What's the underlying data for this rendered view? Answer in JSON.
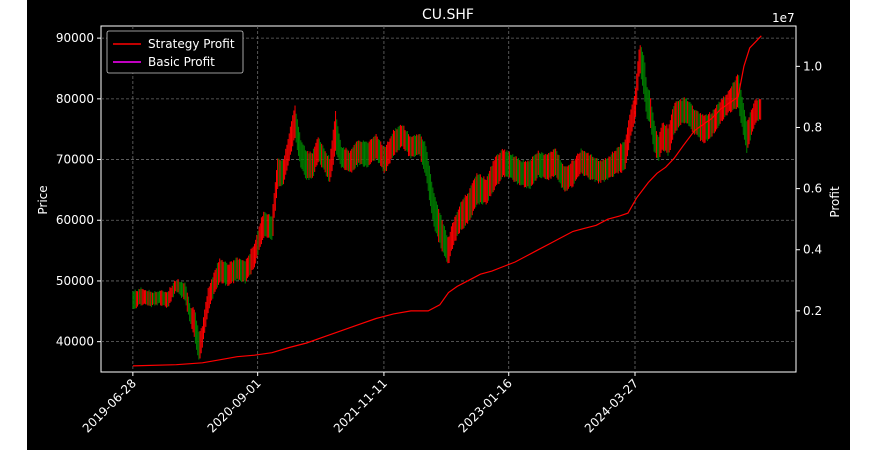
{
  "chart_data": {
    "type": "line",
    "title": "CU.SHF",
    "xlabel": "",
    "ylabel": "Price",
    "y2label": "Profit",
    "y2_offset_label": "1e7",
    "background": "#000000",
    "grid": true,
    "legend_position": "top-left",
    "x_tick_labels": [
      "2019-06-28",
      "2020-09-01",
      "2021-11-11",
      "2023-01-16",
      "2024-03-27"
    ],
    "x_tick_days": [
      0,
      431,
      867,
      1298,
      1734
    ],
    "x_range_days": [
      -110,
      2290
    ],
    "y_ticks": [
      40000,
      50000,
      60000,
      70000,
      80000,
      90000
    ],
    "y_tick_labels": [
      "40000",
      "50000",
      "60000",
      "70000",
      "80000",
      "90000"
    ],
    "ylim": [
      35000,
      92000
    ],
    "y2_ticks": [
      0.2,
      0.4,
      0.6,
      0.8,
      1.0
    ],
    "y2_tick_labels": [
      "0.2",
      "0.4",
      "0.6",
      "0.8",
      "1.0"
    ],
    "y2lim": [
      0.0,
      1.132
    ],
    "price_up_color": "#ff0000",
    "price_down_color": "#008000",
    "price_series": {
      "x": [
        0,
        30,
        60,
        90,
        120,
        150,
        180,
        200,
        210,
        220,
        230,
        240,
        260,
        280,
        300,
        330,
        360,
        390,
        420,
        450,
        480,
        500,
        520,
        545,
        560,
        580,
        600,
        620,
        640,
        660,
        680,
        700,
        720,
        750,
        780,
        810,
        840,
        870,
        900,
        930,
        960,
        990,
        1010,
        1040,
        1070,
        1090,
        1100,
        1110,
        1130,
        1160,
        1190,
        1220,
        1250,
        1280,
        1310,
        1340,
        1370,
        1400,
        1430,
        1460,
        1490,
        1520,
        1550,
        1580,
        1610,
        1640,
        1670,
        1700,
        1720,
        1735,
        1750,
        1765,
        1775,
        1785,
        1800,
        1815,
        1830,
        1850,
        1870,
        1890,
        1910,
        1940,
        1970,
        2000,
        2030,
        2060,
        2090,
        2120,
        2150,
        2170
      ],
      "close": [
        46500,
        47500,
        47000,
        47200,
        47000,
        49500,
        48500,
        44000,
        44500,
        41000,
        39000,
        41000,
        46500,
        49500,
        52000,
        51000,
        52000,
        51500,
        54000,
        59500,
        58500,
        68000,
        67500,
        73000,
        76500,
        71000,
        69000,
        68500,
        71500,
        70000,
        68000,
        73500,
        70500,
        69500,
        71000,
        70500,
        72000,
        69500,
        72500,
        74000,
        72000,
        72500,
        70000,
        62000,
        57000,
        54500,
        56500,
        58000,
        60500,
        62000,
        65000,
        64500,
        67000,
        69500,
        68500,
        67500,
        67000,
        69000,
        68500,
        69500,
        66500,
        67500,
        69500,
        68500,
        68000,
        68500,
        69500,
        70500,
        76000,
        79000,
        88500,
        84000,
        80000,
        79000,
        74000,
        71500,
        73500,
        72500,
        76500,
        77500,
        78000,
        76000,
        74500,
        75500,
        78000,
        79500,
        81500,
        73500,
        78000,
        78500
      ],
      "low": [
        45500,
        46500,
        46000,
        46500,
        46000,
        48500,
        47000,
        43000,
        41500,
        39000,
        37000,
        39500,
        45000,
        48000,
        50000,
        49500,
        50500,
        50000,
        52500,
        57500,
        57000,
        66000,
        66000,
        71000,
        74000,
        69000,
        67000,
        67000,
        70000,
        68500,
        66500,
        71500,
        69000,
        68000,
        69500,
        69000,
        70500,
        68000,
        71000,
        72500,
        70500,
        71000,
        68000,
        59000,
        55000,
        53000,
        55000,
        56500,
        58500,
        60000,
        63000,
        63000,
        65500,
        67500,
        67000,
        66000,
        65500,
        67500,
        67000,
        67500,
        65000,
        66000,
        68000,
        67000,
        66500,
        67000,
        68000,
        68500,
        74000,
        77000,
        85000,
        81000,
        77000,
        76500,
        71500,
        70000,
        72000,
        71000,
        74500,
        76000,
        76500,
        74500,
        73000,
        74000,
        76500,
        78000,
        79000,
        71500,
        76500,
        77000
      ],
      "high": [
        48000,
        48500,
        48000,
        48000,
        48000,
        50000,
        49500,
        45500,
        45500,
        43000,
        41000,
        42500,
        48500,
        51000,
        53500,
        52500,
        53500,
        53000,
        56000,
        61000,
        60500,
        70000,
        69500,
        75500,
        78500,
        73000,
        71000,
        71000,
        73500,
        71500,
        70000,
        77500,
        72000,
        71000,
        73000,
        72500,
        74000,
        71500,
        74500,
        75500,
        73500,
        74000,
        72500,
        64000,
        59500,
        56500,
        58500,
        60000,
        62500,
        64500,
        67500,
        66500,
        70000,
        71500,
        70500,
        69500,
        69500,
        71000,
        70500,
        71500,
        68500,
        69500,
        71500,
        70500,
        69500,
        70000,
        71500,
        73000,
        78000,
        81000,
        89000,
        87000,
        82000,
        81000,
        76000,
        73500,
        76000,
        75000,
        79000,
        79500,
        80000,
        78000,
        77000,
        77500,
        79500,
        81000,
        84000,
        76000,
        79500,
        80000
      ]
    },
    "series": [
      {
        "name": "Strategy Profit",
        "color": "#ff0000",
        "x": [
          0,
          150,
          240,
          300,
          360,
          420,
          480,
          540,
          600,
          660,
          720,
          780,
          840,
          900,
          960,
          1020,
          1060,
          1090,
          1120,
          1160,
          1200,
          1240,
          1280,
          1320,
          1360,
          1400,
          1440,
          1480,
          1520,
          1560,
          1600,
          1640,
          1680,
          1710,
          1740,
          1780,
          1810,
          1840,
          1870,
          1900,
          1940,
          1970,
          2000,
          2030,
          2060,
          2090,
          2110,
          2130,
          2150,
          2170
        ],
        "y": [
          0.02,
          0.024,
          0.03,
          0.04,
          0.05,
          0.055,
          0.063,
          0.08,
          0.095,
          0.115,
          0.135,
          0.155,
          0.175,
          0.19,
          0.2,
          0.2,
          0.22,
          0.26,
          0.28,
          0.3,
          0.32,
          0.33,
          0.345,
          0.36,
          0.38,
          0.4,
          0.42,
          0.44,
          0.46,
          0.47,
          0.48,
          0.5,
          0.51,
          0.52,
          0.57,
          0.62,
          0.65,
          0.67,
          0.7,
          0.74,
          0.79,
          0.81,
          0.83,
          0.86,
          0.88,
          0.9,
          1.0,
          1.06,
          1.08,
          1.1
        ]
      },
      {
        "name": "Basic Profit",
        "color": "#ff00ff",
        "x": [],
        "y": []
      }
    ]
  }
}
